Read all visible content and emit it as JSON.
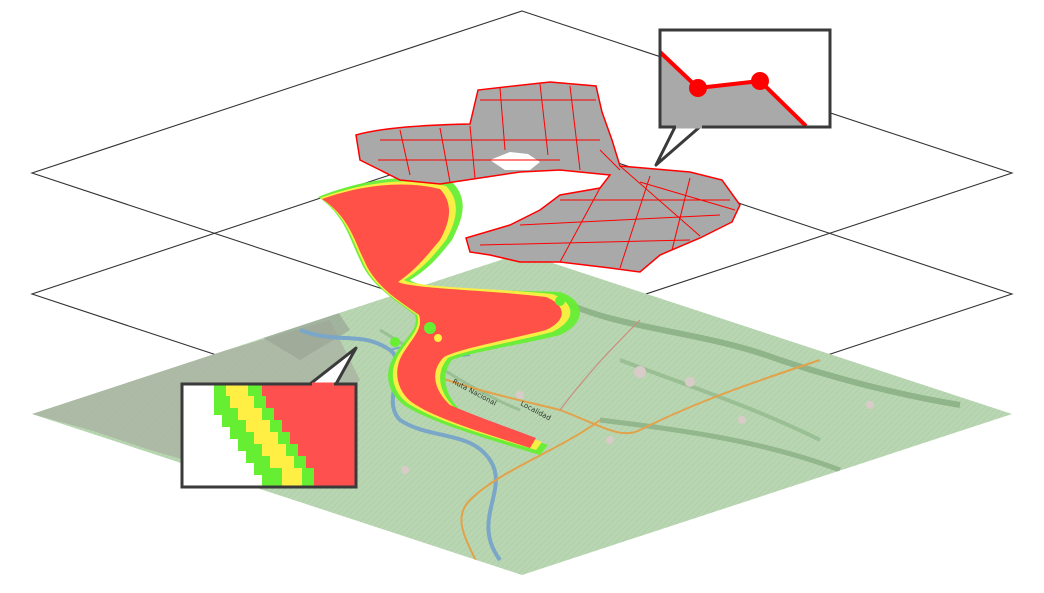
{
  "figure": {
    "layers": [
      {
        "id": "vector",
        "description_name": "vector layer"
      },
      {
        "id": "raster",
        "description_name": "raster layer"
      },
      {
        "id": "basemap",
        "description_name": "topographic basemap"
      }
    ],
    "map_labels": {
      "road_label": "Ruta Nacional",
      "place_label": "Localidad"
    }
  },
  "colors": {
    "layer_outline": "#333333",
    "vector_fill": "#a9a9a9",
    "vector_line": "#ff0000",
    "raster_high": "#ff4040",
    "raster_mid": "#ffee44",
    "raster_low": "#66ee33",
    "basemap_green": "#b9d6b2",
    "river": "#7aa6c8",
    "road": "#e2a24a",
    "callout_border": "#3a3a3a"
  }
}
